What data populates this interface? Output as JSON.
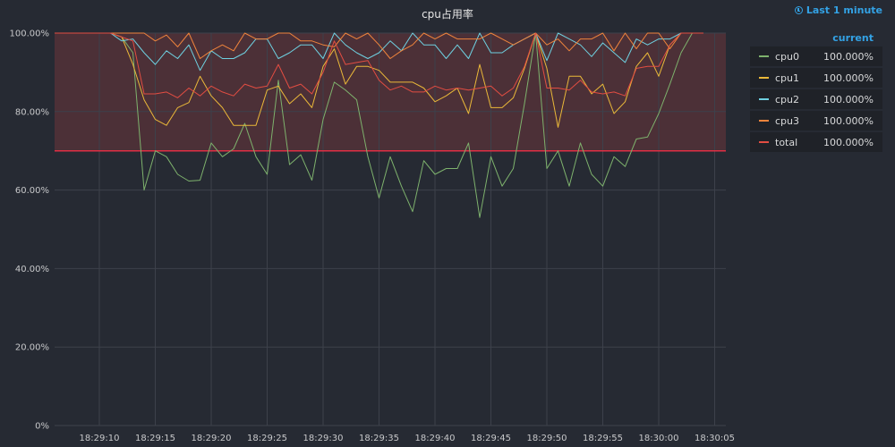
{
  "panel": {
    "title": "cpu占用率",
    "time_range": "Last 1 minute",
    "legend_header": "current"
  },
  "colors": {
    "background": "#262a33",
    "grid": "#3d414b",
    "threshold": "#e02f44",
    "threshold_fill": "#5a3339"
  },
  "chart_data": {
    "type": "line",
    "title": "cpu占用率",
    "y_ticks": [
      "100.00%",
      "80.00%",
      "60.00%",
      "40.00%",
      "20.00%",
      "0%"
    ],
    "ylim": [
      0,
      100
    ],
    "x_ticks": [
      "18:29:10",
      "18:29:15",
      "18:29:20",
      "18:29:25",
      "18:29:30",
      "18:29:35",
      "18:29:40",
      "18:29:45",
      "18:29:50",
      "18:29:55",
      "18:30:00",
      "18:30:05"
    ],
    "x_tick_seconds": [
      10,
      15,
      20,
      25,
      30,
      35,
      40,
      45,
      50,
      55,
      60,
      65
    ],
    "xlim_seconds": [
      6,
      66
    ],
    "threshold": 70,
    "x": [
      6,
      7,
      8,
      9,
      10,
      11,
      12,
      13,
      14,
      15,
      16,
      17,
      18,
      19,
      20,
      21,
      22,
      23,
      24,
      25,
      26,
      27,
      28,
      29,
      30,
      31,
      32,
      33,
      34,
      35,
      36,
      37,
      38,
      39,
      40,
      41,
      42,
      43,
      44,
      45,
      46,
      47,
      48,
      49,
      50,
      51,
      52,
      53,
      54,
      55,
      56,
      57,
      58,
      59,
      60,
      61,
      62,
      63,
      64
    ],
    "series": [
      {
        "name": "cpu0",
        "color": "#7eb26d",
        "current": "100.000%",
        "values": [
          100,
          100,
          100,
          100,
          100,
          100,
          99,
          95,
          60,
          70,
          68.5,
          64,
          62.3,
          62.5,
          72,
          68.5,
          70.5,
          77,
          68.5,
          64,
          88,
          66.5,
          69,
          62.5,
          78,
          87.5,
          85.5,
          83,
          68.5,
          58,
          68.5,
          61,
          54.5,
          67.5,
          64,
          65.5,
          65.5,
          72,
          53,
          68.5,
          61,
          65.5,
          82,
          100,
          65.5,
          70,
          61,
          72,
          64,
          61,
          68.5,
          66,
          73,
          73.5,
          79.5,
          87,
          95,
          100,
          100
        ]
      },
      {
        "name": "cpu1",
        "color": "#eab839",
        "current": "100.000%",
        "values": [
          100,
          100,
          100,
          100,
          100,
          100,
          99,
          92,
          83,
          78,
          76.5,
          81,
          82.3,
          89,
          84,
          81,
          76.5,
          76.5,
          76.5,
          85.5,
          86.5,
          82,
          84.5,
          81,
          91.5,
          96,
          87,
          91.5,
          91.5,
          90.5,
          87.5,
          87.5,
          87.5,
          86,
          82.5,
          84,
          86,
          79.5,
          92,
          81,
          81,
          83.5,
          91,
          100,
          91,
          76,
          89,
          89,
          84.5,
          87,
          79.5,
          82.5,
          91.5,
          95,
          89,
          97,
          100,
          100,
          100
        ]
      },
      {
        "name": "cpu2",
        "color": "#6ed0e0",
        "current": "100.000%",
        "values": [
          100,
          100,
          100,
          100,
          100,
          100,
          98,
          98.5,
          95,
          92,
          95.5,
          93.5,
          97,
          90.5,
          95.5,
          93.5,
          93.5,
          95,
          98.5,
          98.5,
          93.5,
          95,
          97,
          97,
          93.5,
          100,
          97,
          95,
          93.5,
          95,
          98,
          95.5,
          100,
          97,
          97,
          93.5,
          97,
          93.5,
          100,
          95,
          95,
          97,
          98.5,
          100,
          93,
          100,
          98.5,
          97,
          94,
          97.5,
          95,
          92.5,
          98.5,
          97,
          98.5,
          98.5,
          100,
          100,
          100
        ]
      },
      {
        "name": "cpu3",
        "color": "#ef843c",
        "current": "100.000%",
        "values": [
          100,
          100,
          100,
          100,
          100,
          100,
          100,
          100,
          100,
          98,
          99.5,
          96.5,
          100,
          93.5,
          95.5,
          97,
          95.5,
          100,
          98.5,
          98.5,
          100,
          100,
          98,
          98,
          97,
          96.5,
          100,
          98.5,
          100,
          97,
          93.5,
          95.5,
          97,
          100,
          98.5,
          100,
          98.5,
          98.5,
          98.5,
          100,
          98.5,
          97,
          98.5,
          100,
          97,
          98.5,
          95.5,
          98.5,
          98.5,
          100,
          95.5,
          100,
          96,
          100,
          100,
          96,
          100,
          100,
          100
        ]
      },
      {
        "name": "total",
        "color": "#e24d42",
        "current": "100.000%",
        "values": [
          100,
          100,
          100,
          100,
          100,
          100,
          99,
          98,
          84.5,
          84.5,
          85,
          83.5,
          86,
          84,
          86.5,
          85,
          84,
          87,
          86,
          86.5,
          92,
          86,
          87,
          84.5,
          90,
          98,
          92,
          92.5,
          93,
          88,
          85.5,
          86.5,
          85,
          85,
          86.5,
          85.5,
          86,
          85.5,
          86,
          86.5,
          84,
          86,
          91.5,
          100,
          86,
          86,
          85.5,
          88,
          85,
          84.5,
          85,
          84,
          91,
          91.5,
          91.5,
          97,
          100,
          100,
          100
        ]
      }
    ]
  }
}
